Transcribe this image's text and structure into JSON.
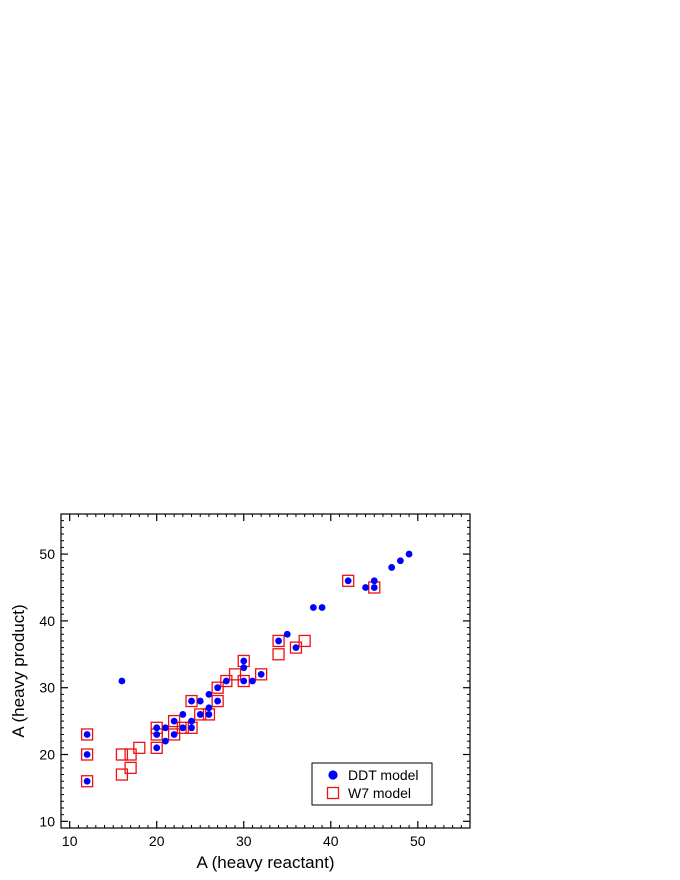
{
  "chart_data": {
    "type": "scatter",
    "title": "",
    "xlabel": "A (heavy reactant)",
    "ylabel": "A (heavy product)",
    "xlim": [
      9,
      56
    ],
    "ylim": [
      9,
      56
    ],
    "xticks": [
      10,
      20,
      30,
      40,
      50
    ],
    "yticks": [
      10,
      20,
      30,
      40,
      50
    ],
    "grid": false,
    "legend_position": "bottom-right",
    "series": [
      {
        "name": "DDT model",
        "marker": "filled-circle",
        "color": "#0000ff",
        "points": [
          [
            12,
            23
          ],
          [
            12,
            20
          ],
          [
            12,
            16
          ],
          [
            16,
            31
          ],
          [
            20,
            24
          ],
          [
            20,
            23
          ],
          [
            20,
            21
          ],
          [
            21,
            24
          ],
          [
            21,
            22
          ],
          [
            22,
            25
          ],
          [
            22,
            23
          ],
          [
            23,
            26
          ],
          [
            23,
            24
          ],
          [
            24,
            28
          ],
          [
            24,
            25
          ],
          [
            24,
            24
          ],
          [
            25,
            28
          ],
          [
            25,
            26
          ],
          [
            26,
            29
          ],
          [
            26,
            27
          ],
          [
            26,
            26
          ],
          [
            27,
            30
          ],
          [
            27,
            28
          ],
          [
            28,
            31
          ],
          [
            30,
            34
          ],
          [
            30,
            33
          ],
          [
            30,
            31
          ],
          [
            31,
            31
          ],
          [
            32,
            32
          ],
          [
            34,
            37
          ],
          [
            35,
            38
          ],
          [
            36,
            36
          ],
          [
            38,
            42
          ],
          [
            39,
            42
          ],
          [
            42,
            46
          ],
          [
            44,
            45
          ],
          [
            45,
            46
          ],
          [
            45,
            45
          ],
          [
            47,
            48
          ],
          [
            48,
            49
          ],
          [
            49,
            50
          ]
        ]
      },
      {
        "name": "W7 model",
        "marker": "open-square",
        "color": "#ee1111",
        "points": [
          [
            12,
            23
          ],
          [
            12,
            20
          ],
          [
            12,
            16
          ],
          [
            16,
            20
          ],
          [
            16,
            17
          ],
          [
            17,
            20
          ],
          [
            17,
            18
          ],
          [
            18,
            21
          ],
          [
            20,
            24
          ],
          [
            20,
            23
          ],
          [
            20,
            21
          ],
          [
            22,
            25
          ],
          [
            22,
            23
          ],
          [
            23,
            24
          ],
          [
            24,
            28
          ],
          [
            24,
            24
          ],
          [
            25,
            26
          ],
          [
            26,
            26
          ],
          [
            27,
            30
          ],
          [
            27,
            28
          ],
          [
            28,
            31
          ],
          [
            29,
            32
          ],
          [
            30,
            34
          ],
          [
            30,
            31
          ],
          [
            32,
            32
          ],
          [
            34,
            37
          ],
          [
            34,
            35
          ],
          [
            36,
            36
          ],
          [
            37,
            37
          ],
          [
            42,
            46
          ],
          [
            45,
            45
          ]
        ]
      }
    ]
  }
}
